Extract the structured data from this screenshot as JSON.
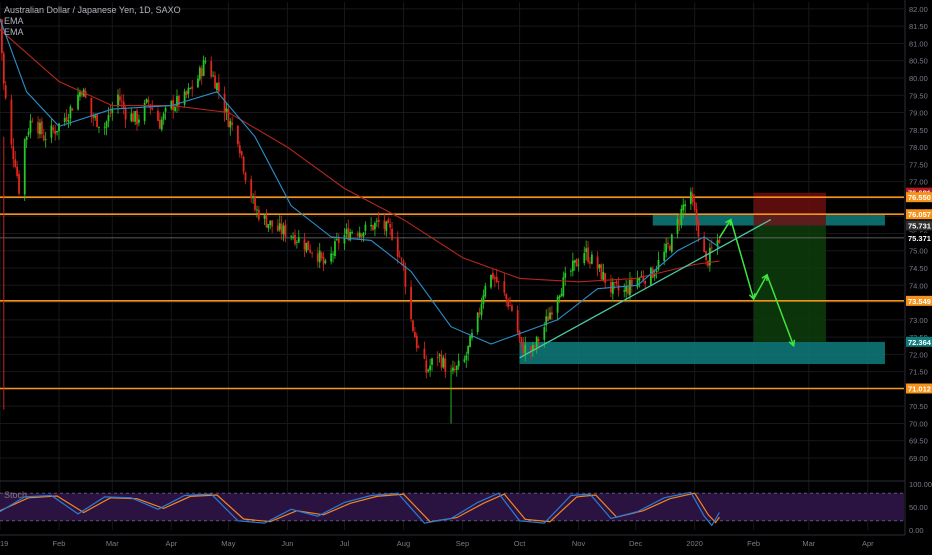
{
  "header": {
    "symbol_line": "Australian Dollar / Japanese Yen, 1D, SAXO",
    "indicator_1": "EMA",
    "indicator_2": "EMA"
  },
  "stoch_label": "Stoch",
  "colors": {
    "background": "#000000",
    "grid": "#16181d",
    "up_candle": "#26c826",
    "down_candle": "#e0261d",
    "ema_fast": "#2a8fc9",
    "ema_slow": "#b3261e",
    "level_line": "#f7931a",
    "gray_line": "#7a7a7a",
    "teal_zone": "#0f7d7d",
    "stop_zone": "#6b0f0f",
    "target_zone": "#0d3d0d",
    "trendline": "#4cc9a6",
    "projection": "#3ee63e",
    "stoch_k": "#2b7bd6",
    "stoch_d": "#f5841f",
    "stoch_band": "#2a1340"
  },
  "chart_data": [
    {
      "type": "candlestick",
      "title": "Australian Dollar / Japanese Yen, 1D, SAXO",
      "symbol": "Australian Dollar / Japanese Yen",
      "timeframe": "1D",
      "source": "SAXO",
      "y_scale": "linear",
      "ylim": [
        69.0,
        82.2
      ],
      "y_ticks": [
        "82.00",
        "81.50",
        "81.00",
        "80.50",
        "80.00",
        "79.50",
        "79.00",
        "78.50",
        "78.00",
        "77.50",
        "77.00",
        "76.50",
        "76.00",
        "75.50",
        "75.00",
        "74.50",
        "74.00",
        "73.50",
        "73.00",
        "72.50",
        "72.00",
        "71.50",
        "71.00",
        "70.50",
        "70.00",
        "69.50",
        "69.00"
      ],
      "x_ticks": [
        "2019",
        "Feb",
        "Mar",
        "Apr",
        "May",
        "Jun",
        "Jul",
        "Aug",
        "Sep",
        "Oct",
        "Nov",
        "Dec",
        "2020",
        "Feb",
        "Mar",
        "Apr"
      ],
      "x_tick_dates": [
        "2019-01-01",
        "2019-02-01",
        "2019-03-01",
        "2019-04-01",
        "2019-05-01",
        "2019-06-01",
        "2019-07-01",
        "2019-08-01",
        "2019-09-01",
        "2019-10-01",
        "2019-11-01",
        "2019-12-01",
        "2020-01-01",
        "2020-02-01",
        "2020-03-01",
        "2020-04-01"
      ],
      "price_path": [
        [
          "2019-01-01",
          81.7
        ],
        [
          "2019-01-03",
          79.8
        ],
        [
          "2019-01-07",
          78.0
        ],
        [
          "2019-01-09",
          77.6
        ],
        [
          "2019-01-11",
          76.8
        ],
        [
          "2019-01-14",
          78.2
        ],
        [
          "2019-01-18",
          78.9
        ],
        [
          "2019-01-24",
          78.3
        ],
        [
          "2019-01-30",
          78.5
        ],
        [
          "2019-02-06",
          79.0
        ],
        [
          "2019-02-13",
          79.7
        ],
        [
          "2019-02-18",
          78.9
        ],
        [
          "2019-02-25",
          78.6
        ],
        [
          "2019-03-04",
          79.5
        ],
        [
          "2019-03-08",
          79.0
        ],
        [
          "2019-03-14",
          78.8
        ],
        [
          "2019-03-20",
          79.3
        ],
        [
          "2019-03-26",
          78.7
        ],
        [
          "2019-04-01",
          79.2
        ],
        [
          "2019-04-08",
          79.4
        ],
        [
          "2019-04-15",
          80.0
        ],
        [
          "2019-04-19",
          80.5
        ],
        [
          "2019-04-25",
          79.8
        ],
        [
          "2019-05-01",
          78.8
        ],
        [
          "2019-05-06",
          78.3
        ],
        [
          "2019-05-10",
          77.2
        ],
        [
          "2019-05-15",
          76.2
        ],
        [
          "2019-05-20",
          75.9
        ],
        [
          "2019-05-27",
          75.6
        ],
        [
          "2019-06-03",
          75.5
        ],
        [
          "2019-06-10",
          75.2
        ],
        [
          "2019-06-17",
          74.9
        ],
        [
          "2019-06-21",
          74.5
        ],
        [
          "2019-06-28",
          75.3
        ],
        [
          "2019-07-05",
          75.6
        ],
        [
          "2019-07-12",
          75.6
        ],
        [
          "2019-07-19",
          75.8
        ],
        [
          "2019-07-26",
          75.5
        ],
        [
          "2019-08-01",
          74.5
        ],
        [
          "2019-08-05",
          73.0
        ],
        [
          "2019-08-08",
          72.3
        ],
        [
          "2019-08-13",
          71.5
        ],
        [
          "2019-08-19",
          72.0
        ],
        [
          "2019-08-26",
          71.4
        ],
        [
          "2019-09-02",
          71.8
        ],
        [
          "2019-09-09",
          73.0
        ],
        [
          "2019-09-13",
          74.1
        ],
        [
          "2019-09-17",
          74.3
        ],
        [
          "2019-09-23",
          73.7
        ],
        [
          "2019-09-27",
          73.3
        ],
        [
          "2019-10-02",
          72.2
        ],
        [
          "2019-10-08",
          72.1
        ],
        [
          "2019-10-14",
          72.8
        ],
        [
          "2019-10-21",
          73.8
        ],
        [
          "2019-10-28",
          74.4
        ],
        [
          "2019-11-04",
          75.0
        ],
        [
          "2019-11-11",
          74.5
        ],
        [
          "2019-11-18",
          73.9
        ],
        [
          "2019-11-25",
          73.8
        ],
        [
          "2019-12-02",
          74.2
        ],
        [
          "2019-12-09",
          74.3
        ],
        [
          "2019-12-16",
          74.9
        ],
        [
          "2019-12-20",
          75.3
        ],
        [
          "2019-12-26",
          76.3
        ],
        [
          "2019-12-30",
          76.5
        ],
        [
          "2020-01-03",
          75.6
        ],
        [
          "2020-01-07",
          74.6
        ],
        [
          "2020-01-10",
          75.0
        ],
        [
          "2020-01-14",
          75.37
        ]
      ],
      "ema_fast": [
        [
          "2019-01-01",
          81.7
        ],
        [
          "2019-01-15",
          79.6
        ],
        [
          "2019-02-01",
          78.6
        ],
        [
          "2019-03-01",
          79.1
        ],
        [
          "2019-04-01",
          79.2
        ],
        [
          "2019-04-25",
          79.6
        ],
        [
          "2019-05-15",
          78.3
        ],
        [
          "2019-06-03",
          76.3
        ],
        [
          "2019-06-24",
          75.4
        ],
        [
          "2019-07-15",
          75.3
        ],
        [
          "2019-08-05",
          74.4
        ],
        [
          "2019-08-26",
          72.8
        ],
        [
          "2019-09-16",
          72.3
        ],
        [
          "2019-10-01",
          72.6
        ],
        [
          "2019-10-21",
          73.0
        ],
        [
          "2019-11-11",
          73.9
        ],
        [
          "2019-12-02",
          74.0
        ],
        [
          "2019-12-23",
          75.0
        ],
        [
          "2020-01-06",
          75.4
        ],
        [
          "2020-01-14",
          75.1
        ]
      ],
      "ema_slow": [
        [
          "2019-01-01",
          81.4
        ],
        [
          "2019-02-01",
          79.9
        ],
        [
          "2019-03-01",
          79.2
        ],
        [
          "2019-04-01",
          79.2
        ],
        [
          "2019-05-01",
          79.0
        ],
        [
          "2019-06-01",
          78.0
        ],
        [
          "2019-07-01",
          76.8
        ],
        [
          "2019-08-01",
          75.9
        ],
        [
          "2019-09-01",
          74.8
        ],
        [
          "2019-10-01",
          74.2
        ],
        [
          "2019-11-01",
          74.1
        ],
        [
          "2019-12-01",
          74.2
        ],
        [
          "2020-01-01",
          74.6
        ],
        [
          "2020-01-14",
          74.7
        ]
      ],
      "price_labels": [
        {
          "value": 76.681,
          "text": "76.681",
          "bg": "#b71c1c"
        },
        {
          "value": 76.55,
          "text": "76.550",
          "bg": "#f7931a"
        },
        {
          "value": 76.057,
          "text": "76.057",
          "bg": "#f7931a"
        },
        {
          "value": 75.731,
          "text": "75.731",
          "bg": "#2f2f2f"
        },
        {
          "value": 75.371,
          "text": "75.371",
          "bg": "#000000"
        },
        {
          "value": 73.549,
          "text": "73.549",
          "bg": "#f7931a"
        },
        {
          "value": 72.364,
          "text": "72.364",
          "bg": "#0f7d7d"
        },
        {
          "value": 71.012,
          "text": "71.012",
          "bg": "#f7931a"
        }
      ],
      "horizontal_levels": [
        {
          "value": 76.55,
          "style": "orange"
        },
        {
          "value": 76.057,
          "style": "orange"
        },
        {
          "value": 75.371,
          "style": "gray"
        },
        {
          "value": 73.549,
          "style": "orange"
        },
        {
          "value": 71.012,
          "style": "orange"
        }
      ],
      "zones": [
        {
          "name": "resistance-zone",
          "x0": "2019-12-10",
          "x1": "2020-04-10",
          "y0": 75.73,
          "y1": 76.05,
          "color": "teal"
        },
        {
          "name": "support-zone",
          "x0": "2019-10-01",
          "x1": "2020-04-10",
          "y0": 71.72,
          "y1": 72.36,
          "color": "teal"
        },
        {
          "name": "stop-zone",
          "x0": "2020-02-01",
          "x1": "2020-03-10",
          "y0": 75.73,
          "y1": 76.68,
          "color": "red"
        },
        {
          "name": "target-zone",
          "x0": "2020-02-01",
          "x1": "2020-03-10",
          "y0": 72.36,
          "y1": 75.73,
          "color": "green"
        }
      ],
      "trendline": [
        [
          "2019-10-01",
          71.9
        ],
        [
          "2020-02-10",
          75.9
        ]
      ],
      "projection_path": [
        [
          "2020-01-14",
          75.37
        ],
        [
          "2020-01-20",
          75.9
        ],
        [
          "2020-02-01",
          73.6
        ],
        [
          "2020-02-08",
          74.3
        ],
        [
          "2020-02-22",
          72.25
        ]
      ]
    },
    {
      "type": "line",
      "title": "Stoch",
      "ylim": [
        0,
        100
      ],
      "y_ticks": [
        "100.00",
        "50.00",
        "0.00"
      ],
      "bands": [
        20,
        80
      ],
      "series": [
        {
          "name": "K",
          "values": [
            [
              "2019-01-01",
              40
            ],
            [
              "2019-01-14",
              72
            ],
            [
              "2019-01-28",
              75
            ],
            [
              "2019-02-11",
              35
            ],
            [
              "2019-02-25",
              72
            ],
            [
              "2019-03-11",
              70
            ],
            [
              "2019-03-25",
              45
            ],
            [
              "2019-04-08",
              75
            ],
            [
              "2019-04-22",
              78
            ],
            [
              "2019-05-06",
              20
            ],
            [
              "2019-05-20",
              15
            ],
            [
              "2019-06-03",
              45
            ],
            [
              "2019-06-17",
              30
            ],
            [
              "2019-07-01",
              60
            ],
            [
              "2019-07-15",
              75
            ],
            [
              "2019-07-29",
              80
            ],
            [
              "2019-08-12",
              15
            ],
            [
              "2019-08-26",
              25
            ],
            [
              "2019-09-09",
              60
            ],
            [
              "2019-09-20",
              80
            ],
            [
              "2019-10-01",
              20
            ],
            [
              "2019-10-14",
              15
            ],
            [
              "2019-10-28",
              75
            ],
            [
              "2019-11-07",
              78
            ],
            [
              "2019-11-18",
              25
            ],
            [
              "2019-12-02",
              40
            ],
            [
              "2019-12-16",
              70
            ],
            [
              "2019-12-30",
              82
            ],
            [
              "2020-01-06",
              30
            ],
            [
              "2020-01-10",
              10
            ],
            [
              "2020-01-14",
              38
            ]
          ]
        },
        {
          "name": "D",
          "values": [
            [
              "2019-01-01",
              42
            ],
            [
              "2019-01-16",
              70
            ],
            [
              "2019-01-31",
              74
            ],
            [
              "2019-02-14",
              38
            ],
            [
              "2019-02-28",
              70
            ],
            [
              "2019-03-14",
              68
            ],
            [
              "2019-03-28",
              47
            ],
            [
              "2019-04-11",
              73
            ],
            [
              "2019-04-25",
              76
            ],
            [
              "2019-05-09",
              24
            ],
            [
              "2019-05-23",
              18
            ],
            [
              "2019-06-06",
              42
            ],
            [
              "2019-06-20",
              33
            ],
            [
              "2019-07-04",
              58
            ],
            [
              "2019-07-18",
              73
            ],
            [
              "2019-08-01",
              78
            ],
            [
              "2019-08-15",
              18
            ],
            [
              "2019-08-29",
              27
            ],
            [
              "2019-09-12",
              58
            ],
            [
              "2019-09-23",
              78
            ],
            [
              "2019-10-04",
              23
            ],
            [
              "2019-10-17",
              18
            ],
            [
              "2019-10-31",
              72
            ],
            [
              "2019-11-10",
              76
            ],
            [
              "2019-11-21",
              28
            ],
            [
              "2019-12-05",
              42
            ],
            [
              "2019-12-19",
              68
            ],
            [
              "2020-01-01",
              80
            ],
            [
              "2020-01-08",
              34
            ],
            [
              "2020-01-12",
              16
            ],
            [
              "2020-01-14",
              28
            ]
          ]
        }
      ]
    }
  ]
}
